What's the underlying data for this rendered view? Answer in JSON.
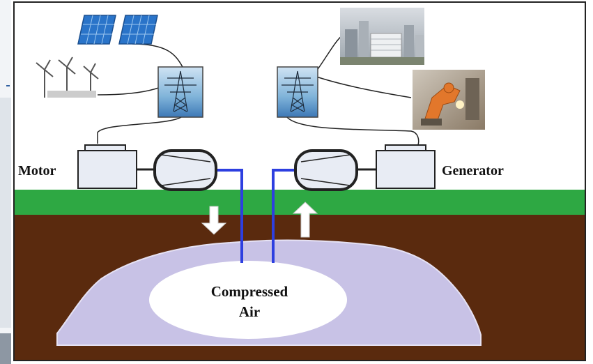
{
  "labels": {
    "motor": "Motor",
    "generator": "Generator",
    "storage_line1": "Compressed",
    "storage_line2": "Air"
  },
  "colors": {
    "grass": "#2ea843",
    "soil": "#5a2a0e",
    "compressed_air_zone": "#c8c2e6",
    "pipe": "#2d3fe0",
    "machine_fill": "#e8ecf4",
    "border": "#222222"
  },
  "icons": {
    "solar_panels": "solar-panel-icon",
    "wind_turbines": "wind-turbine-icon",
    "left_pylon": "transmission-tower-icon",
    "right_pylon": "transmission-tower-icon",
    "city": "city-buildings-image",
    "factory": "industrial-robot-image",
    "down_arrow": "arrow-down-icon",
    "up_arrow": "arrow-up-icon"
  }
}
